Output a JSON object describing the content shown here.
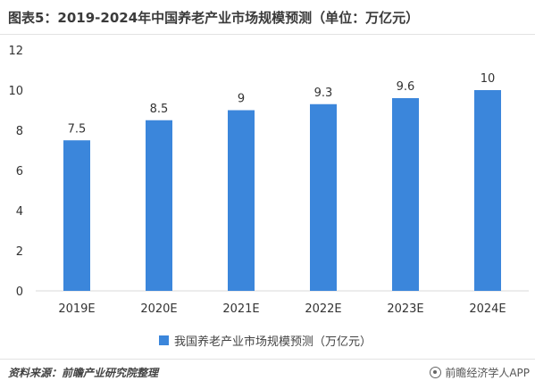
{
  "header": {
    "title": "图表5：2019-2024年中国养老产业市场规模预测（单位：万亿元）"
  },
  "chart_data": {
    "type": "bar",
    "title": "图表5：2019-2024年中国养老产业市场规模预测（单位：万亿元）",
    "categories": [
      "2019E",
      "2020E",
      "2021E",
      "2022E",
      "2023E",
      "2024E"
    ],
    "series": [
      {
        "name": "我国养老产业市场规模预测（万亿元）",
        "values": [
          7.5,
          8.5,
          9,
          9.3,
          9.6,
          10
        ],
        "labels": [
          "7.5",
          "8.5",
          "9",
          "9.3",
          "9.6",
          "10"
        ],
        "color": "#3b86db"
      }
    ],
    "yticks": [
      0,
      2,
      4,
      6,
      8,
      10,
      12
    ],
    "ylim": [
      0,
      12
    ],
    "grid": false,
    "legend": "bottom"
  },
  "footer": {
    "source": "资料来源：前瞻产业研究院整理",
    "brand": "前瞻经济学人APP"
  },
  "colors": {
    "bar": "#3b86db",
    "axis": "#d9d9d9",
    "text": "#333333"
  }
}
